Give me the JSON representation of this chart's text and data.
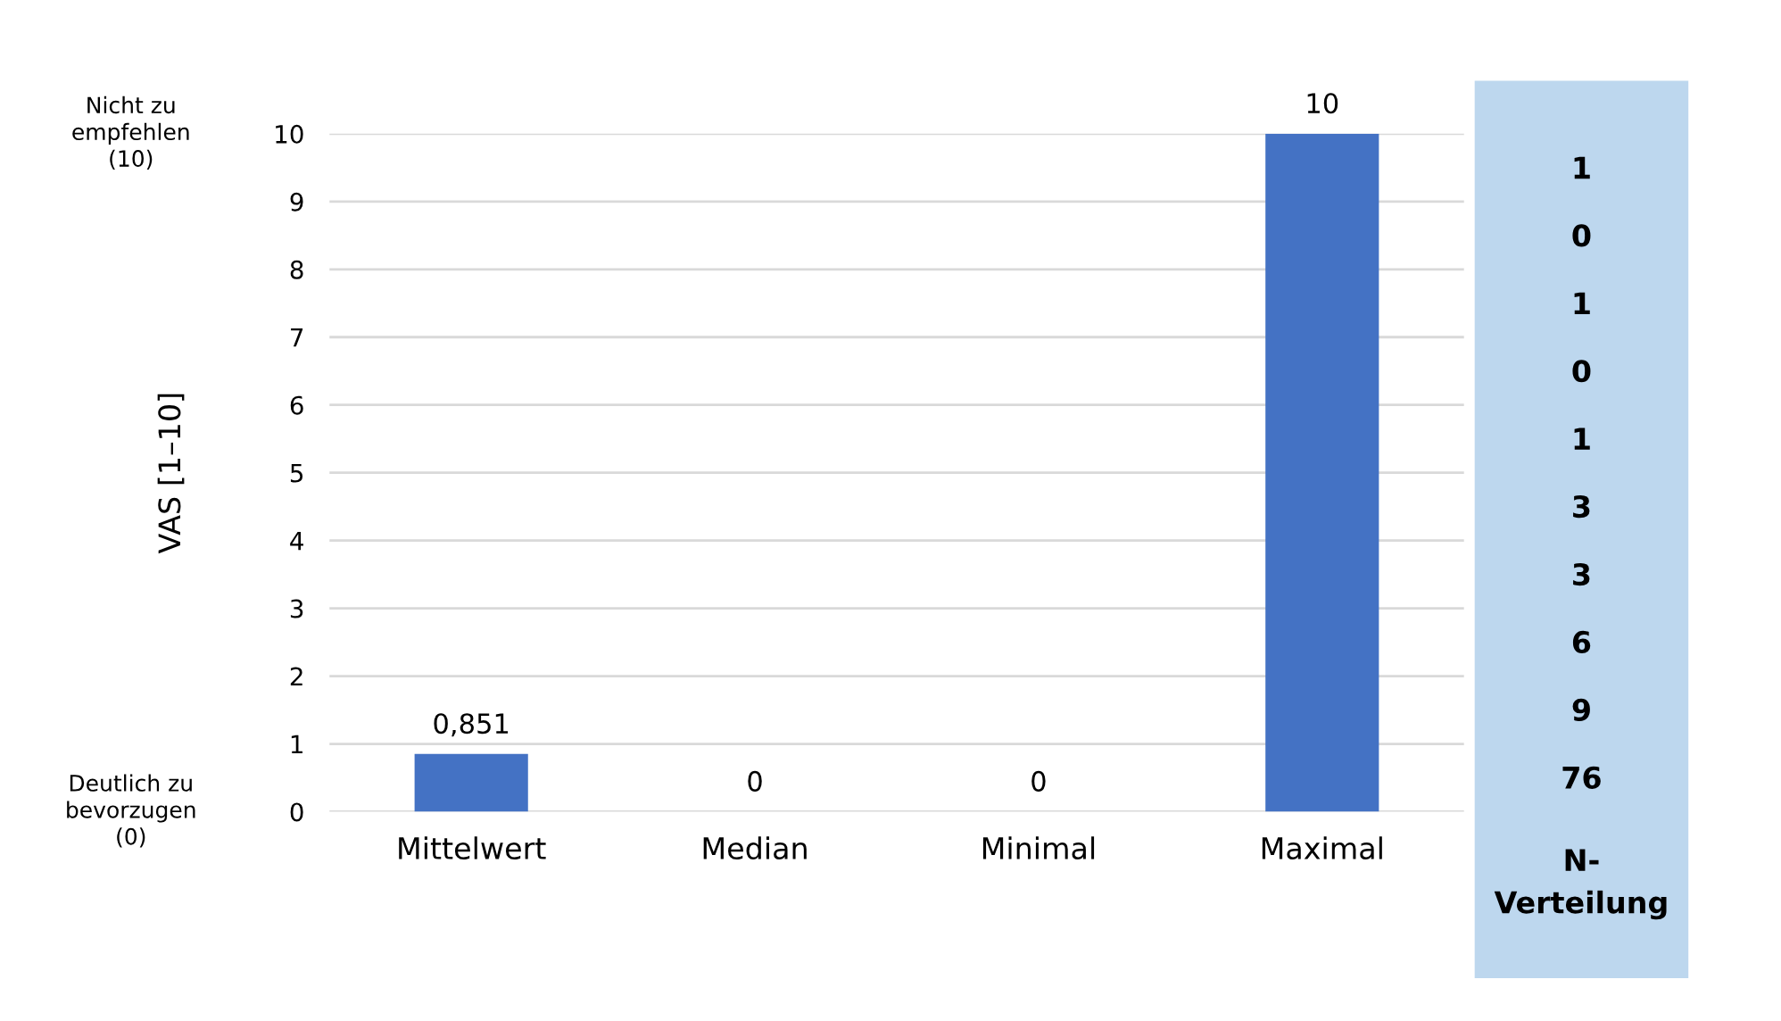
{
  "chart_data": [
    {
      "type": "bar",
      "ylabel": "VAS [1–10]",
      "categories": [
        "Mittelwert",
        "Median",
        "Minimal",
        "Maximal"
      ],
      "series": [
        {
          "color": "#4472c4",
          "values": [
            0.851,
            0,
            0,
            10
          ],
          "value_labels": [
            "0,851",
            "0",
            "0",
            "10"
          ]
        }
      ],
      "ylim": [
        0,
        10
      ],
      "yticks": [
        0,
        1,
        2,
        3,
        4,
        5,
        6,
        7,
        8,
        9,
        10
      ],
      "grid": "y",
      "annotations": [
        "Nicht zu\nempfehlen\n(10)",
        "Deutlich zu\nbevorzugen\n(0)"
      ]
    },
    {
      "type": "other",
      "title": "N-\nVerteilung",
      "annotations": [
        "1",
        "0",
        "1",
        "0",
        "1",
        "3",
        "3",
        "6",
        "9",
        "76"
      ]
    }
  ]
}
